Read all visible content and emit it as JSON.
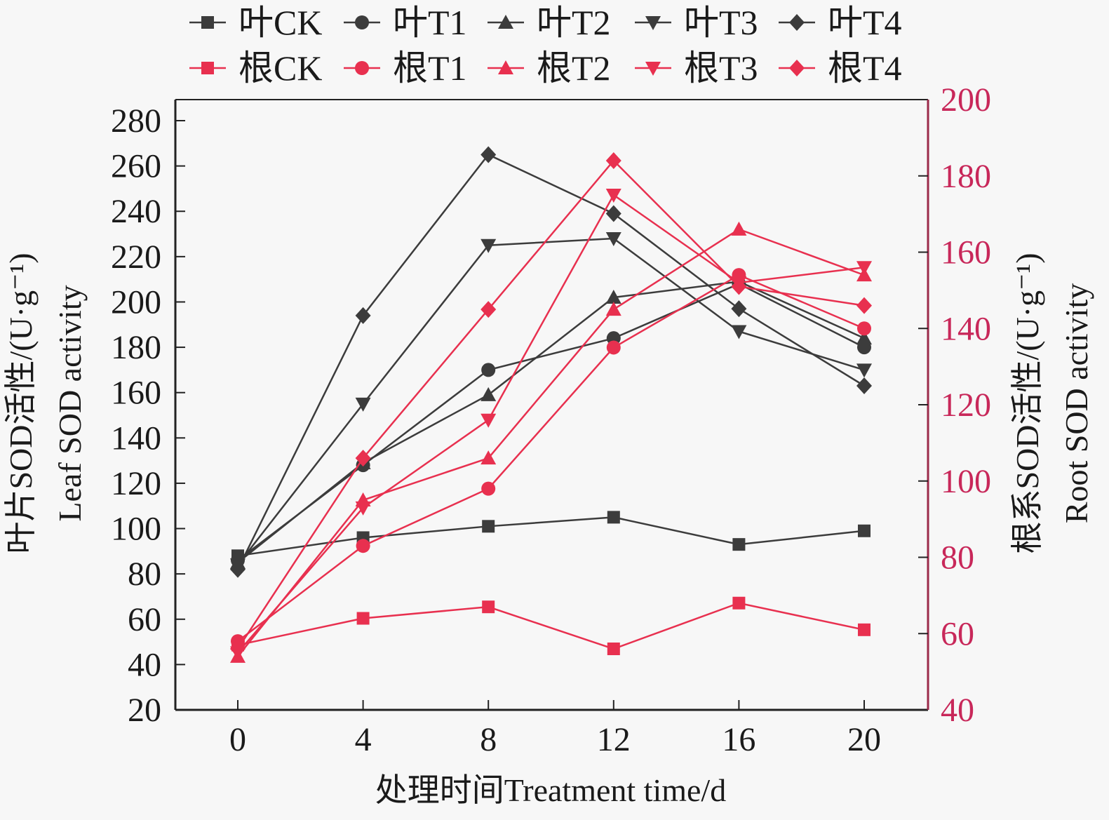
{
  "chart_data": {
    "type": "line",
    "title": "",
    "x": [
      0,
      4,
      8,
      12,
      16,
      20
    ],
    "xlabel": "处理时间Treatment time/d",
    "xticks": [
      "0",
      "4",
      "8",
      "12",
      "16",
      "20"
    ],
    "xlim": [
      -2,
      22
    ],
    "ylabel_left_line1": "叶片SOD活性/(U·g⁻¹)",
    "ylabel_left_line2": "Leaf SOD activity",
    "ylabel_right_line1": "根系SOD活性/(U·g⁻¹)",
    "ylabel_right_line2": "Root SOD activity",
    "ylim_left": [
      20,
      280
    ],
    "ylim_right": [
      40,
      200
    ],
    "yticks_left": [
      20,
      40,
      60,
      80,
      100,
      120,
      140,
      160,
      180,
      200,
      220,
      240,
      260,
      280
    ],
    "yticks_right": [
      40,
      60,
      80,
      100,
      120,
      140,
      160,
      180,
      200
    ],
    "grid": false,
    "legend_position": "top",
    "colors": {
      "leaf": "#3c3c3c",
      "root": "#e8304f",
      "right_axis": "#c8285a"
    },
    "series": [
      {
        "name": "叶CK",
        "axis": "left",
        "marker": "square",
        "group": "leaf",
        "values": [
          88,
          96,
          101,
          105,
          93,
          99
        ]
      },
      {
        "name": "叶T1",
        "axis": "left",
        "marker": "circle",
        "group": "leaf",
        "values": [
          86,
          128,
          170,
          184,
          208,
          180
        ]
      },
      {
        "name": "叶T2",
        "axis": "left",
        "marker": "triangle-up",
        "group": "leaf",
        "values": [
          85,
          129,
          159,
          202,
          209,
          184
        ]
      },
      {
        "name": "叶T3",
        "axis": "left",
        "marker": "triangle-down",
        "group": "leaf",
        "values": [
          84,
          155,
          225,
          228,
          187,
          170
        ]
      },
      {
        "name": "叶T4",
        "axis": "left",
        "marker": "diamond",
        "group": "leaf",
        "values": [
          82,
          194,
          265,
          239,
          197,
          163
        ]
      },
      {
        "name": "根CK",
        "axis": "right",
        "marker": "square",
        "group": "root",
        "values": [
          57,
          64,
          67,
          56,
          68,
          61
        ]
      },
      {
        "name": "根T1",
        "axis": "right",
        "marker": "circle",
        "group": "root",
        "values": [
          58,
          83,
          98,
          135,
          154,
          140
        ]
      },
      {
        "name": "根T2",
        "axis": "right",
        "marker": "triangle-up",
        "group": "root",
        "values": [
          54,
          95,
          106,
          145,
          166,
          154
        ]
      },
      {
        "name": "根T3",
        "axis": "right",
        "marker": "triangle-down",
        "group": "root",
        "values": [
          55,
          93,
          116,
          175,
          152,
          156
        ]
      },
      {
        "name": "根T4",
        "axis": "right",
        "marker": "diamond",
        "group": "root",
        "values": [
          56,
          106,
          145,
          184,
          151,
          146
        ]
      }
    ]
  }
}
